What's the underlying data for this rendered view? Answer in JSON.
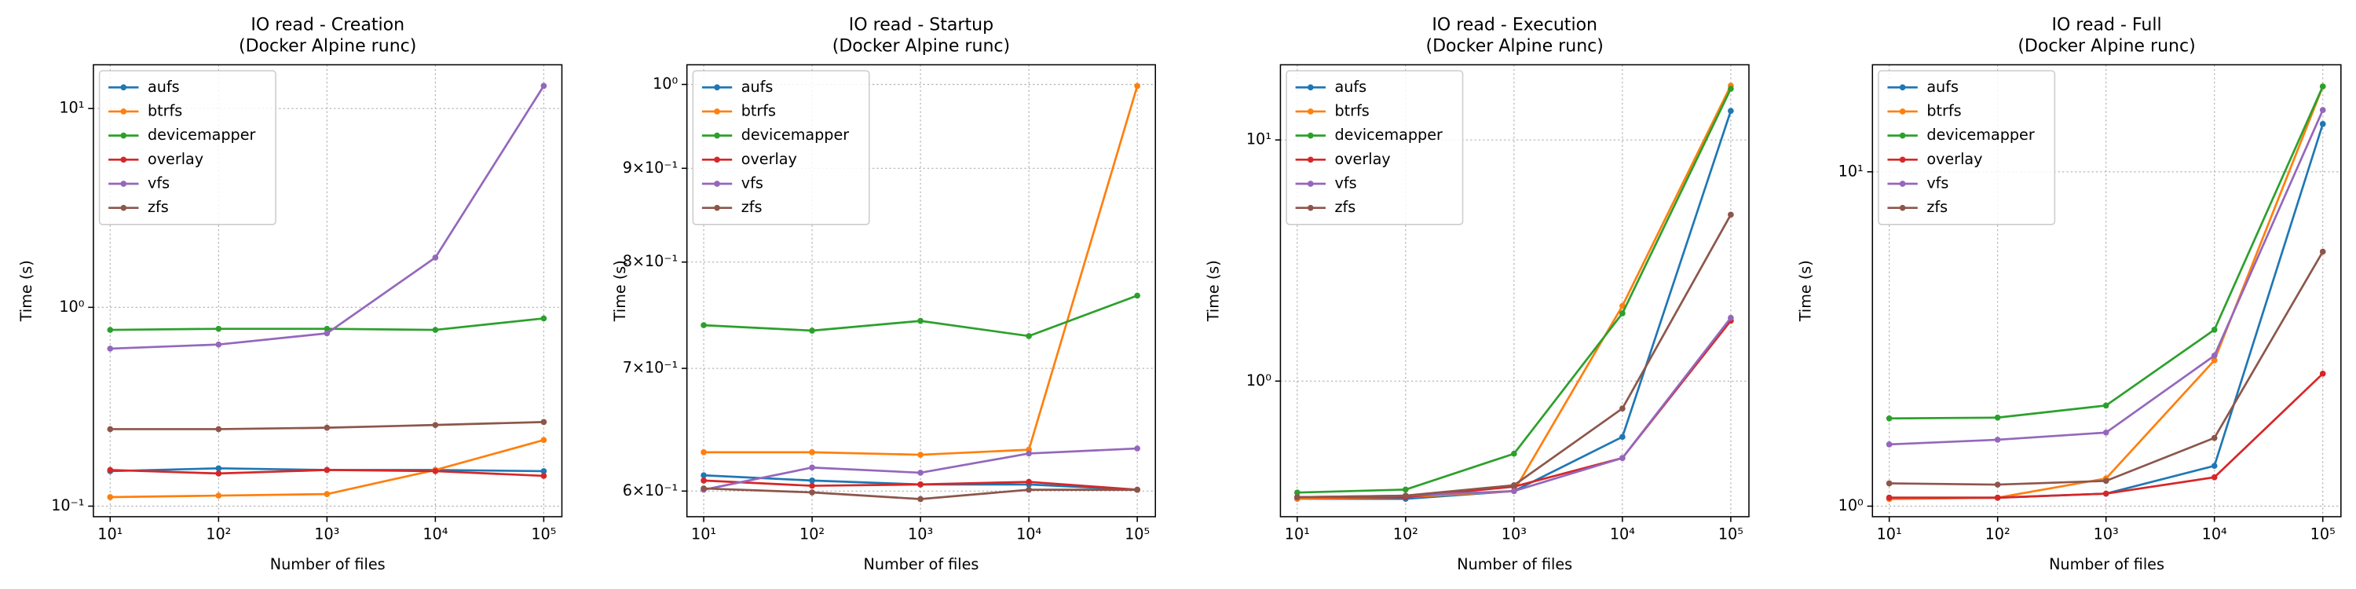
{
  "chart_data": [
    {
      "type": "line",
      "title": "IO read - Creation",
      "subtitle": "(Docker Alpine runc)",
      "x_label": "Number of files",
      "y_label": "Time (s)",
      "log_x": true,
      "log_y": true,
      "grid": true,
      "legend": "upper left",
      "x": [
        10,
        100,
        1000,
        10000,
        100000
      ],
      "xlim": [
        7.0,
        147000
      ],
      "xticks": [
        {
          "value": 10,
          "label": "10¹"
        },
        {
          "value": 100,
          "label": "10²"
        },
        {
          "value": 1000,
          "label": "10³"
        },
        {
          "value": 10000,
          "label": "10⁴"
        },
        {
          "value": 100000,
          "label": "10⁵"
        }
      ],
      "ylim": [
        0.0885,
        16.6
      ],
      "yticks": [
        {
          "value": 0.1,
          "label": "10⁻¹"
        },
        {
          "value": 1,
          "label": "10⁰"
        },
        {
          "value": 10,
          "label": "10¹"
        }
      ],
      "series": [
        {
          "name": "aufs",
          "color": "#1f77b4",
          "values": [
            0.15,
            0.155,
            0.152,
            0.152,
            0.15
          ]
        },
        {
          "name": "btrfs",
          "color": "#ff7f0e",
          "values": [
            0.111,
            0.113,
            0.115,
            0.152,
            0.215
          ]
        },
        {
          "name": "devicemapper",
          "color": "#2ca02c",
          "values": [
            0.77,
            0.78,
            0.78,
            0.77,
            0.88
          ]
        },
        {
          "name": "overlay",
          "color": "#d62728",
          "values": [
            0.152,
            0.146,
            0.152,
            0.15,
            0.142
          ]
        },
        {
          "name": "vfs",
          "color": "#9467bd",
          "values": [
            0.62,
            0.65,
            0.74,
            1.78,
            13
          ]
        },
        {
          "name": "zfs",
          "color": "#8c564b",
          "values": [
            0.244,
            0.244,
            0.248,
            0.256,
            0.265
          ]
        }
      ]
    },
    {
      "type": "line",
      "title": "IO read - Startup",
      "subtitle": "(Docker Alpine runc)",
      "x_label": "Number of files",
      "y_label": "Time (s)",
      "log_x": true,
      "log_y": true,
      "grid": true,
      "legend": "upper left",
      "x": [
        10,
        100,
        1000,
        10000,
        100000
      ],
      "xlim": [
        7.0,
        147000
      ],
      "xticks": [
        {
          "value": 10,
          "label": "10¹"
        },
        {
          "value": 100,
          "label": "10²"
        },
        {
          "value": 1000,
          "label": "10³"
        },
        {
          "value": 10000,
          "label": "10⁴"
        },
        {
          "value": 100000,
          "label": "10⁵"
        }
      ],
      "ylim": [
        0.581,
        1.025
      ],
      "yticks": [
        {
          "value": 0.6,
          "label": "6×10⁻¹"
        },
        {
          "value": 0.7,
          "label": "7×10⁻¹"
        },
        {
          "value": 0.8,
          "label": "8×10⁻¹"
        },
        {
          "value": 0.9,
          "label": "9×10⁻¹"
        },
        {
          "value": 1,
          "label": "10⁰"
        }
      ],
      "series": [
        {
          "name": "aufs",
          "color": "#1f77b4",
          "values": [
            0.612,
            0.608,
            0.605,
            0.605,
            0.601
          ]
        },
        {
          "name": "btrfs",
          "color": "#ff7f0e",
          "values": [
            0.63,
            0.63,
            0.628,
            0.632,
            0.998
          ]
        },
        {
          "name": "devicemapper",
          "color": "#2ca02c",
          "values": [
            0.739,
            0.734,
            0.743,
            0.729,
            0.767
          ]
        },
        {
          "name": "overlay",
          "color": "#d62728",
          "values": [
            0.608,
            0.604,
            0.605,
            0.607,
            0.601
          ]
        },
        {
          "name": "vfs",
          "color": "#9467bd",
          "values": [
            0.601,
            0.618,
            0.614,
            0.629,
            0.633
          ]
        },
        {
          "name": "zfs",
          "color": "#8c564b",
          "values": [
            0.602,
            0.599,
            0.594,
            0.601,
            0.601
          ]
        }
      ]
    },
    {
      "type": "line",
      "title": "IO read - Execution",
      "subtitle": "(Docker Alpine runc)",
      "x_label": "Number of files",
      "y_label": "Time (s)",
      "log_x": true,
      "log_y": true,
      "grid": true,
      "legend": "upper left",
      "x": [
        10,
        100,
        1000,
        10000,
        100000
      ],
      "xlim": [
        7.0,
        147000
      ],
      "xticks": [
        {
          "value": 10,
          "label": "10¹"
        },
        {
          "value": 100,
          "label": "10²"
        },
        {
          "value": 1000,
          "label": "10³"
        },
        {
          "value": 10000,
          "label": "10⁴"
        },
        {
          "value": 100000,
          "label": "10⁵"
        }
      ],
      "ylim": [
        0.274,
        20.5
      ],
      "yticks": [
        {
          "value": 1,
          "label": "10⁰"
        },
        {
          "value": 10,
          "label": "10¹"
        }
      ],
      "series": [
        {
          "name": "aufs",
          "color": "#1f77b4",
          "values": [
            0.325,
            0.325,
            0.35,
            0.587,
            13.2
          ]
        },
        {
          "name": "btrfs",
          "color": "#ff7f0e",
          "values": [
            0.325,
            0.33,
            0.35,
            2.05,
            16.8
          ]
        },
        {
          "name": "devicemapper",
          "color": "#2ca02c",
          "values": [
            0.345,
            0.355,
            0.5,
            1.91,
            16.3
          ]
        },
        {
          "name": "overlay",
          "color": "#d62728",
          "values": [
            0.33,
            0.33,
            0.365,
            0.48,
            1.78
          ]
        },
        {
          "name": "vfs",
          "color": "#9467bd",
          "values": [
            0.33,
            0.335,
            0.35,
            0.48,
            1.83
          ]
        },
        {
          "name": "zfs",
          "color": "#8c564b",
          "values": [
            0.33,
            0.335,
            0.37,
            0.77,
            4.9
          ]
        }
      ]
    },
    {
      "type": "line",
      "title": "IO read - Full",
      "subtitle": "(Docker Alpine runc)",
      "x_label": "Number of files",
      "y_label": "Time (s)",
      "log_x": true,
      "log_y": true,
      "grid": true,
      "legend": "upper left",
      "x": [
        10,
        100,
        1000,
        10000,
        100000
      ],
      "xlim": [
        7.0,
        147000
      ],
      "xticks": [
        {
          "value": 10,
          "label": "10¹"
        },
        {
          "value": 100,
          "label": "10²"
        },
        {
          "value": 1000,
          "label": "10³"
        },
        {
          "value": 10000,
          "label": "10⁴"
        },
        {
          "value": 100000,
          "label": "10⁵"
        }
      ],
      "ylim": [
        0.93,
        20.9
      ],
      "yticks": [
        {
          "value": 1,
          "label": "10⁰"
        },
        {
          "value": 10,
          "label": "10¹"
        }
      ],
      "series": [
        {
          "name": "aufs",
          "color": "#1f77b4",
          "values": [
            1.06,
            1.06,
            1.09,
            1.32,
            13.9
          ]
        },
        {
          "name": "btrfs",
          "color": "#ff7f0e",
          "values": [
            1.05,
            1.06,
            1.21,
            2.73,
            18.0
          ]
        },
        {
          "name": "devicemapper",
          "color": "#2ca02c",
          "values": [
            1.83,
            1.84,
            2.0,
            3.37,
            18.0
          ]
        },
        {
          "name": "overlay",
          "color": "#d62728",
          "values": [
            1.06,
            1.06,
            1.09,
            1.22,
            2.49
          ]
        },
        {
          "name": "vfs",
          "color": "#9467bd",
          "values": [
            1.53,
            1.58,
            1.66,
            2.82,
            15.3
          ]
        },
        {
          "name": "zfs",
          "color": "#8c564b",
          "values": [
            1.17,
            1.16,
            1.19,
            1.6,
            5.77
          ]
        }
      ]
    }
  ]
}
